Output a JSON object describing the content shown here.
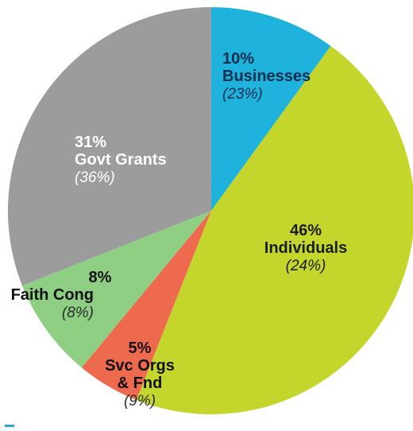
{
  "chart_data": {
    "type": "pie",
    "title": "",
    "start_angle_deg": 0,
    "direction": "clockwise",
    "slices": [
      {
        "name": "Businesses",
        "lines": [
          "Businesses"
        ],
        "value": 10,
        "pct_label": "10%",
        "prior_label": "(23%)",
        "color": "#1fb2dc",
        "text_color": "#0c2f4f",
        "sub_color": "#0c2f4f"
      },
      {
        "name": "Individuals",
        "lines": [
          "Individuals"
        ],
        "value": 46,
        "pct_label": "46%",
        "prior_label": "(24%)",
        "color": "#c4d62b",
        "text_color": "#1c1c1c",
        "sub_color": "#1c1c1c"
      },
      {
        "name": "Svc Orgs & Fnd",
        "lines": [
          "Svc Orgs",
          "& Fnd"
        ],
        "value": 5,
        "pct_label": "5%",
        "prior_label": "(9%)",
        "color": "#ee6a4e",
        "text_color": "#111111",
        "sub_color": "#2a2a2a"
      },
      {
        "name": "Faith Cong",
        "lines": [
          "Faith Cong"
        ],
        "value": 8,
        "pct_label": "8%",
        "prior_label": "(8%)",
        "color": "#8fcf83",
        "text_color": "#111111",
        "sub_color": "#2a2a2a"
      },
      {
        "name": "Govt Grants",
        "lines": [
          "Govt Grants"
        ],
        "value": 31,
        "pct_label": "31%",
        "prior_label": "(36%)",
        "color": "#9c9c9c",
        "text_color": "#ffffff",
        "sub_color": "#ffffff"
      }
    ]
  }
}
